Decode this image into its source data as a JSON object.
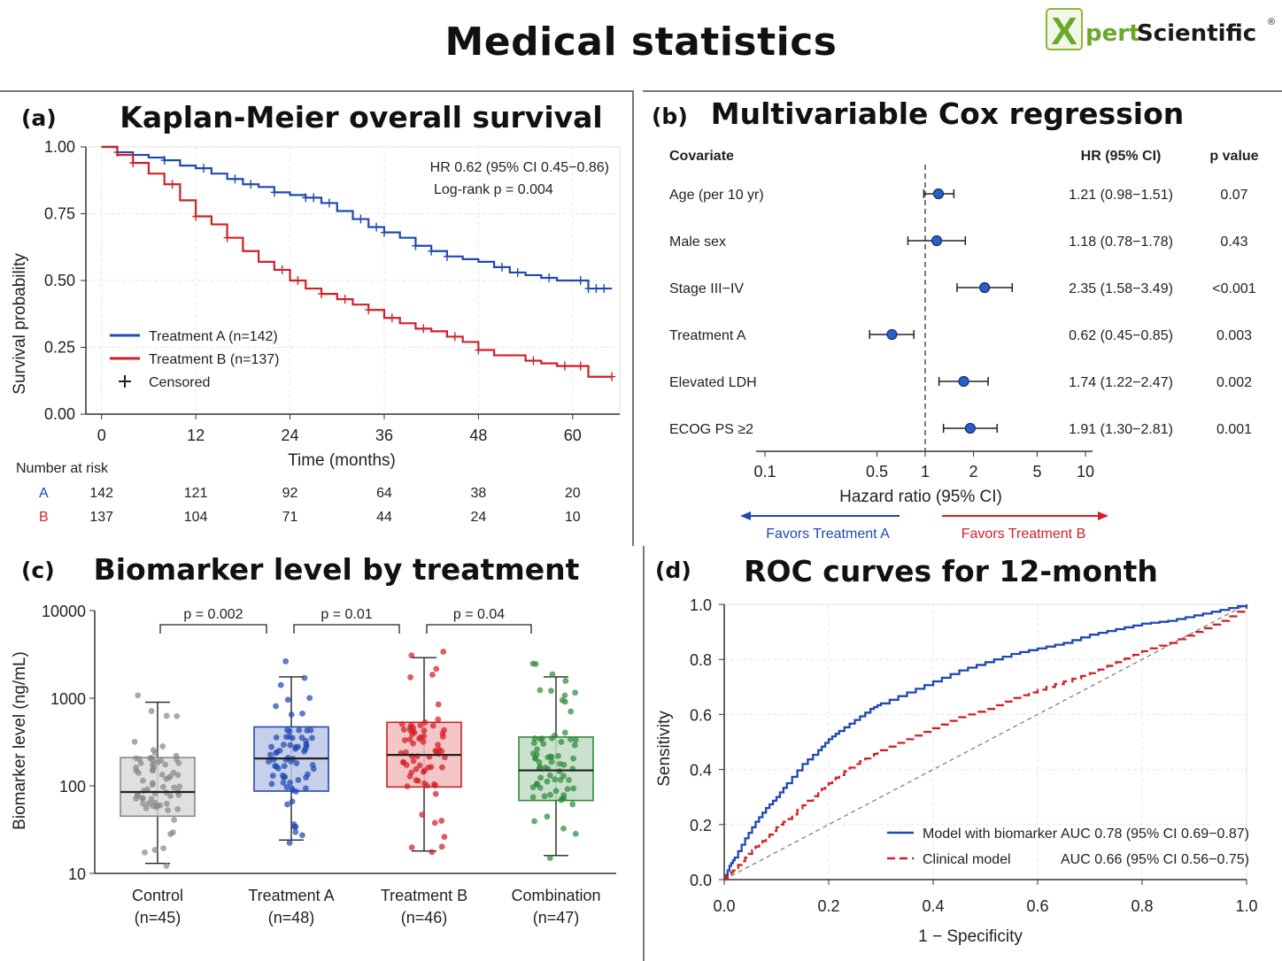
{
  "page": {
    "title": "Medical statistics",
    "logo": {
      "initial": "X",
      "part1": "pert",
      "part2": "Scientific",
      "mark": "®"
    }
  },
  "colors": {
    "blue": "#1f48b3",
    "red": "#d21f26",
    "grey": "#888888",
    "green": "#2e8b3a"
  },
  "panels": {
    "a": {
      "label": "(a)",
      "title": "Kaplan-Meier overall survival"
    },
    "b": {
      "label": "(b)",
      "title": "Multivariable Cox regression"
    },
    "c": {
      "label": "(c)",
      "title": "Biomarker level by treatment"
    },
    "d": {
      "label": "(d)",
      "title": "ROC curves for 12-month"
    }
  },
  "chart_data": [
    {
      "id": "km",
      "type": "line",
      "xlabel": "Time (months)",
      "ylabel": "Survival probability",
      "xlim": [
        -2,
        66
      ],
      "ylim": [
        0,
        1
      ],
      "xticks": [
        0,
        12,
        24,
        36,
        48,
        60
      ],
      "yticks": [
        "0.00",
        "0.25",
        "0.50",
        "0.75",
        "1.00"
      ],
      "annotation": [
        "HR 0.62 (95% CI 0.45−0.86)",
        "Log-rank p = 0.004"
      ],
      "legend": [
        "Treatment A (n=142)",
        "Treatment B (n=137)",
        "Censored"
      ],
      "legend_position": "lower-left",
      "series": [
        {
          "name": "Treatment A (n=142)",
          "color": "blue",
          "x": [
            0,
            2,
            4,
            6,
            8,
            10,
            12,
            14,
            16,
            18,
            20,
            22,
            24,
            26,
            28,
            30,
            32,
            34,
            36,
            38,
            40,
            42,
            44,
            46,
            48,
            50,
            52,
            54,
            56,
            58,
            60,
            62,
            65
          ],
          "y": [
            1.0,
            0.98,
            0.97,
            0.96,
            0.95,
            0.93,
            0.92,
            0.9,
            0.88,
            0.86,
            0.85,
            0.83,
            0.82,
            0.81,
            0.79,
            0.76,
            0.73,
            0.7,
            0.68,
            0.66,
            0.63,
            0.61,
            0.59,
            0.58,
            0.57,
            0.55,
            0.53,
            0.52,
            0.51,
            0.5,
            0.5,
            0.47,
            0.47
          ],
          "censored": [
            2,
            8,
            13,
            17,
            19,
            22,
            26,
            27,
            29,
            33,
            35,
            36,
            40,
            42,
            44,
            51,
            53,
            57,
            61,
            62,
            63,
            64
          ]
        },
        {
          "name": "Treatment B (n=137)",
          "color": "red",
          "x": [
            0,
            2,
            4,
            6,
            8,
            10,
            12,
            14,
            16,
            18,
            20,
            22,
            24,
            26,
            28,
            30,
            32,
            34,
            36,
            38,
            40,
            42,
            44,
            46,
            48,
            50,
            52,
            54,
            56,
            58,
            60,
            62,
            65
          ],
          "y": [
            1.0,
            0.97,
            0.94,
            0.9,
            0.86,
            0.8,
            0.74,
            0.71,
            0.66,
            0.61,
            0.57,
            0.54,
            0.5,
            0.47,
            0.45,
            0.43,
            0.41,
            0.39,
            0.36,
            0.34,
            0.32,
            0.31,
            0.29,
            0.27,
            0.24,
            0.22,
            0.22,
            0.2,
            0.19,
            0.18,
            0.18,
            0.14,
            0.14
          ],
          "censored": [
            4,
            9,
            12,
            16,
            23,
            25,
            28,
            31,
            34,
            37,
            41,
            45,
            48,
            55,
            59,
            61,
            65
          ]
        }
      ],
      "risk_table": {
        "title": "Number at risk",
        "rows": [
          {
            "label": "A",
            "color": "blue",
            "values": [
              "142",
              "121",
              "92",
              "64",
              "38",
              "20"
            ]
          },
          {
            "label": "B",
            "color": "red",
            "values": [
              "137",
              "104",
              "71",
              "44",
              "24",
              "10"
            ]
          }
        ]
      }
    },
    {
      "id": "forest",
      "type": "scatter",
      "xlabel": "Hazard ratio (95% CI)",
      "xscale": "log",
      "xlim": [
        0.1,
        10
      ],
      "xticks": [
        "0.1",
        "0.5",
        "1",
        "2",
        "5",
        "10"
      ],
      "reference_line": 1,
      "headers": [
        "Covariate",
        "HR (95% CI)",
        "p value"
      ],
      "rows": [
        {
          "covariate": "Age (per 10 yr)",
          "hr": 1.21,
          "lo": 0.98,
          "hi": 1.51,
          "text": "1.21 (0.98−1.51)",
          "p": "0.07"
        },
        {
          "covariate": "Male sex",
          "hr": 1.18,
          "lo": 0.78,
          "hi": 1.78,
          "text": "1.18 (0.78−1.78)",
          "p": "0.43"
        },
        {
          "covariate": "Stage III−IV",
          "hr": 2.35,
          "lo": 1.58,
          "hi": 3.49,
          "text": "2.35 (1.58−3.49)",
          "p": "<0.001"
        },
        {
          "covariate": "Treatment A",
          "hr": 0.62,
          "lo": 0.45,
          "hi": 0.85,
          "text": "0.62 (0.45−0.85)",
          "p": "0.003"
        },
        {
          "covariate": "Elevated LDH",
          "hr": 1.74,
          "lo": 1.22,
          "hi": 2.47,
          "text": "1.74 (1.22−2.47)",
          "p": "0.002"
        },
        {
          "covariate": "ECOG PS ≥2",
          "hr": 1.91,
          "lo": 1.3,
          "hi": 2.81,
          "text": "1.91 (1.30−2.81)",
          "p": "0.001"
        }
      ],
      "favors_left": "Favors Treatment A",
      "favors_right": "Favors Treatment B"
    },
    {
      "id": "box",
      "type": "box",
      "ylabel": "Biomarker level (ng/mL)",
      "yscale": "log",
      "ylim": [
        10,
        10000
      ],
      "yticks": [
        "10",
        "100",
        "1000",
        "10000"
      ],
      "categories": [
        {
          "name": "Control",
          "n": "(n=45)",
          "color": "grey",
          "min": 13,
          "q1": 45,
          "median": 85,
          "q3": 210,
          "max": 900
        },
        {
          "name": "Treatment A",
          "n": "(n=48)",
          "color": "blue",
          "min": 24,
          "q1": 87,
          "median": 205,
          "q3": 470,
          "max": 1750
        },
        {
          "name": "Treatment B",
          "n": "(n=46)",
          "color": "red",
          "min": 18,
          "q1": 97,
          "median": 225,
          "q3": 530,
          "max": 2900
        },
        {
          "name": "Combination",
          "n": "(n=47)",
          "color": "green",
          "min": 16,
          "q1": 68,
          "median": 150,
          "q3": 360,
          "max": 1750
        }
      ],
      "comparisons": [
        {
          "from": 0,
          "to": 1,
          "label": "p = 0.002"
        },
        {
          "from": 1,
          "to": 2,
          "label": "p = 0.01"
        },
        {
          "from": 2,
          "to": 3,
          "label": "p = 0.04"
        }
      ]
    },
    {
      "id": "roc",
      "type": "line",
      "xlabel": "1 − Specificity",
      "ylabel": "Sensitivity",
      "xlim": [
        0,
        1
      ],
      "ylim": [
        0,
        1
      ],
      "xticks": [
        "0.0",
        "0.2",
        "0.4",
        "0.6",
        "0.8",
        "1.0"
      ],
      "yticks": [
        "0.0",
        "0.2",
        "0.4",
        "0.6",
        "0.8",
        "1.0"
      ],
      "legend_position": "bottom-right",
      "series": [
        {
          "name": "Model with biomarker",
          "auc": "AUC 0.78 (95% CI 0.69−0.87)",
          "color": "blue",
          "dash": false,
          "x": [
            0,
            0.01,
            0.02,
            0.04,
            0.06,
            0.08,
            0.1,
            0.12,
            0.15,
            0.18,
            0.2,
            0.22,
            0.25,
            0.28,
            0.3,
            0.35,
            0.4,
            0.45,
            0.5,
            0.55,
            0.6,
            0.65,
            0.7,
            0.75,
            0.8,
            0.85,
            0.9,
            0.95,
            1.0
          ],
          "y": [
            0,
            0.05,
            0.08,
            0.15,
            0.21,
            0.26,
            0.3,
            0.35,
            0.42,
            0.47,
            0.51,
            0.54,
            0.58,
            0.62,
            0.64,
            0.68,
            0.72,
            0.76,
            0.79,
            0.82,
            0.84,
            0.86,
            0.89,
            0.91,
            0.93,
            0.94,
            0.96,
            0.98,
            1.0
          ]
        },
        {
          "name": "Clinical model",
          "auc": "AUC 0.66 (95% CI 0.56−0.75)",
          "color": "red",
          "dash": true,
          "x": [
            0,
            0.01,
            0.02,
            0.04,
            0.06,
            0.08,
            0.1,
            0.12,
            0.15,
            0.18,
            0.2,
            0.22,
            0.25,
            0.28,
            0.3,
            0.35,
            0.4,
            0.45,
            0.5,
            0.55,
            0.6,
            0.65,
            0.7,
            0.75,
            0.8,
            0.85,
            0.9,
            0.95,
            1.0
          ],
          "y": [
            0,
            0.02,
            0.04,
            0.08,
            0.12,
            0.15,
            0.19,
            0.22,
            0.27,
            0.32,
            0.35,
            0.38,
            0.42,
            0.45,
            0.47,
            0.51,
            0.55,
            0.59,
            0.62,
            0.66,
            0.69,
            0.72,
            0.75,
            0.79,
            0.83,
            0.86,
            0.9,
            0.94,
            0.99
          ]
        }
      ],
      "diagonal": true
    }
  ]
}
